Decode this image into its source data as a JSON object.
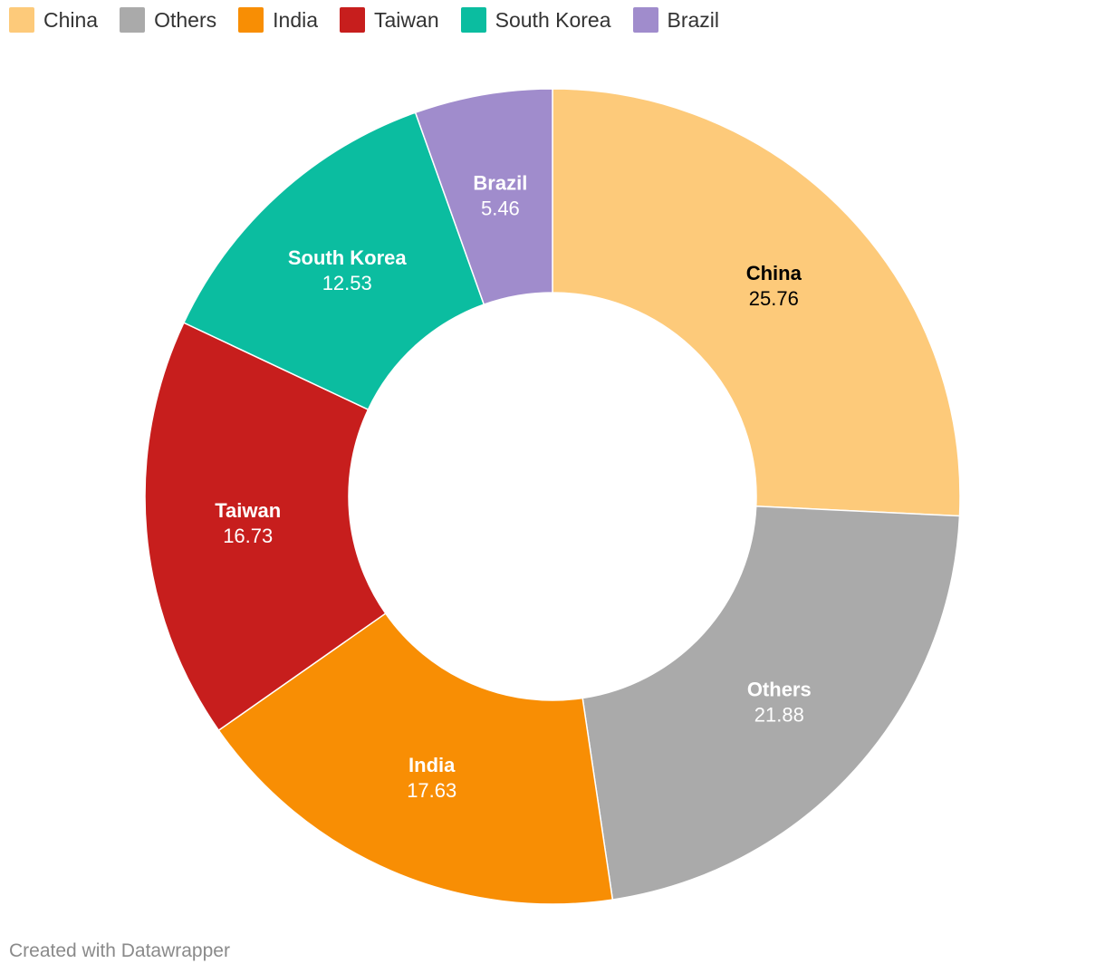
{
  "legend": [
    {
      "label": "China",
      "color": "#fdca7a"
    },
    {
      "label": "Others",
      "color": "#aaaaaa"
    },
    {
      "label": "India",
      "color": "#f88e04"
    },
    {
      "label": "Taiwan",
      "color": "#c71e1d"
    },
    {
      "label": "South Korea",
      "color": "#0bbda0"
    },
    {
      "label": "Brazil",
      "color": "#a08ccc"
    }
  ],
  "chart_data": {
    "type": "pie",
    "donut": true,
    "slices": [
      {
        "label": "China",
        "value": 25.76,
        "value_text": "25.76",
        "color": "#fdca7a",
        "label_color": "#000000"
      },
      {
        "label": "Others",
        "value": 21.88,
        "value_text": "21.88",
        "color": "#aaaaaa",
        "label_color": "#ffffff"
      },
      {
        "label": "India",
        "value": 17.63,
        "value_text": "17.63",
        "color": "#f88e04",
        "label_color": "#ffffff"
      },
      {
        "label": "Taiwan",
        "value": 16.73,
        "value_text": "16.73",
        "color": "#c71e1d",
        "label_color": "#ffffff"
      },
      {
        "label": "South Korea",
        "value": 12.53,
        "value_text": "12.53",
        "color": "#0bbda0",
        "label_color": "#ffffff"
      },
      {
        "label": "Brazil",
        "value": 5.46,
        "value_text": "5.46",
        "color": "#a08ccc",
        "label_color": "#ffffff"
      }
    ]
  },
  "footer": {
    "credit": "Created with Datawrapper"
  }
}
